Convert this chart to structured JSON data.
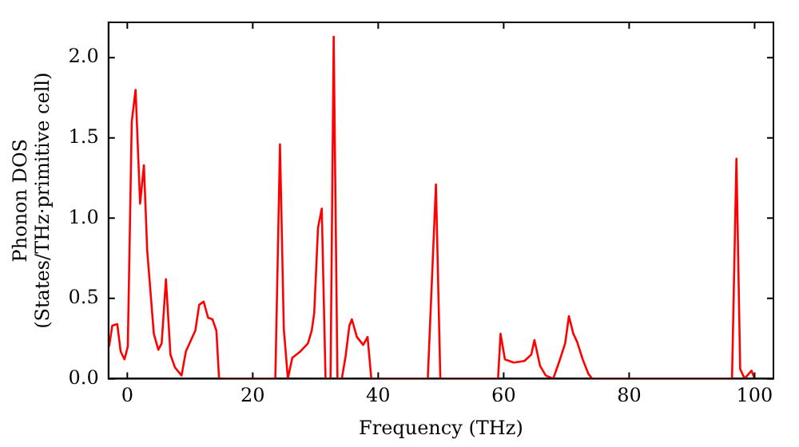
{
  "chart_data": {
    "type": "line",
    "xlabel": "Frequency (THz)",
    "ylabel": "Phonon DOS\n(States/THz·primitive cell)",
    "xlim": [
      -3,
      103
    ],
    "ylim": [
      0,
      2.22
    ],
    "xticks": [
      0,
      20,
      40,
      60,
      80,
      100
    ],
    "yticks": [
      {
        "value": 0,
        "label": "0.0"
      },
      {
        "value": 0.5,
        "label": "0.5"
      },
      {
        "value": 1,
        "label": "1.0"
      },
      {
        "value": 1.5,
        "label": "1.5"
      },
      {
        "value": 2,
        "label": "2.0"
      }
    ],
    "grid": false,
    "legend": false,
    "marker": "none",
    "line_style": "solid",
    "x": [
      -2.9,
      -2.4,
      -1.6,
      -1.06,
      -0.45,
      0.08,
      0.71,
      1.32,
      2.04,
      2.65,
      3.17,
      4.23,
      4.95,
      5.48,
      6.16,
      6.88,
      7.6,
      8.65,
      9.34,
      10.85,
      11.46,
      12.17,
      12.88,
      13.57,
      14.2,
      14.63,
      23.6,
      24.34,
      24.95,
      25.6,
      26.3,
      27.6,
      28.8,
      29.4,
      29.8,
      30.4,
      31.0,
      31.6,
      32.4,
      32.9,
      33.5,
      34.2,
      34.8,
      35.4,
      35.8,
      36.6,
      37.6,
      38.3,
      38.9,
      47.9,
      49.2,
      49.9,
      59.1,
      59.5,
      60.2,
      61.6,
      63.3,
      64.4,
      64.9,
      65.8,
      66.7,
      67.9,
      68.8,
      69.8,
      70.4,
      71.1,
      71.7,
      72.6,
      73.5,
      74.1,
      96.4,
      97.1,
      97.7,
      98.4,
      99.5,
      100
    ],
    "series": [
      {
        "color": "#ff0000",
        "values": [
          0.2,
          0.33,
          0.34,
          0.17,
          0.12,
          0.2,
          1.6,
          1.8,
          1.09,
          1.33,
          0.8,
          0.28,
          0.18,
          0.22,
          0.62,
          0.15,
          0.07,
          0.02,
          0.17,
          0.3,
          0.46,
          0.48,
          0.38,
          0.37,
          0.3,
          0,
          0,
          1.46,
          0.31,
          0,
          0.13,
          0.17,
          0.22,
          0.3,
          0.41,
          0.94,
          1.06,
          0,
          0,
          2.13,
          0,
          0,
          0.14,
          0.33,
          0.37,
          0.26,
          0.21,
          0.26,
          0,
          0,
          1.21,
          0,
          0,
          0.28,
          0.12,
          0.1,
          0.11,
          0.15,
          0.24,
          0.08,
          0.02,
          0,
          0.1,
          0.22,
          0.39,
          0.28,
          0.23,
          0.12,
          0.03,
          0,
          0,
          1.37,
          0.06,
          0,
          0.05,
          0
        ]
      }
    ]
  }
}
